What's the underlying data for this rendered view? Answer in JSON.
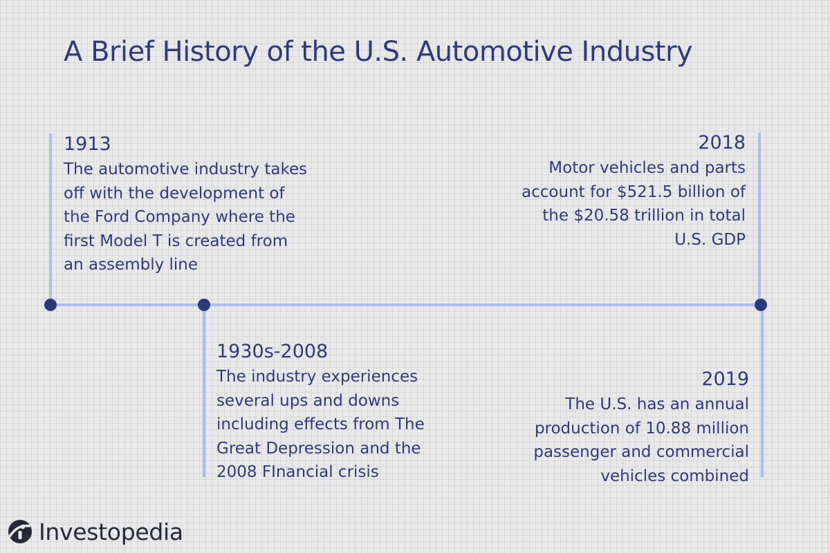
{
  "title": "A Brief History of the U.S. Automotive Industry",
  "events": [
    {
      "year": "1913",
      "description": "The automotive industry takes off with the development of the Ford Company where the first Model T is created from an assembly line"
    },
    {
      "year": "1930s-2008",
      "description": "The industry experiences several ups and downs including effects from The Great Depression and the 2008 FInancial crisis"
    },
    {
      "year": "2018",
      "description": "Motor vehicles and parts account for $521.5 billion of the $20.58 trillion in total U.S. GDP"
    },
    {
      "year": "2019",
      "description": "The U.S. has an annual production of 10.88 million passenger and commercial vehicles combined"
    }
  ],
  "brand": {
    "name": "Investopedia",
    "logo_icon": "investopedia-logo-icon"
  },
  "colors": {
    "text": "#2f3a7e",
    "line": "#a9bdee",
    "node": "#2d3a78",
    "background": "#e9e9ea",
    "brand_text": "#252a3a"
  }
}
